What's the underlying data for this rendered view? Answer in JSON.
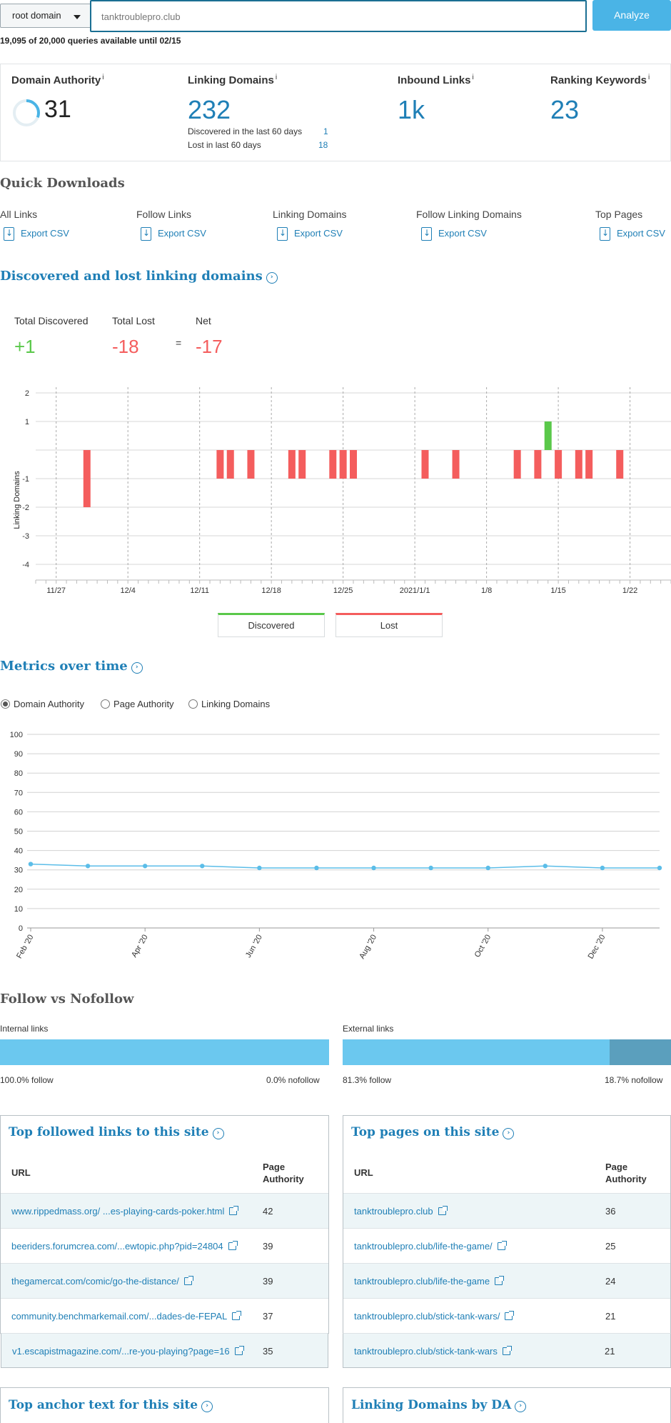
{
  "search": {
    "scope": "root domain",
    "query": "tanktroublepro.club",
    "analyze_label": "Analyze",
    "quota": "19,095 of 20,000 queries available until 02/15"
  },
  "metrics": {
    "domain_authority": {
      "label": "Domain Authority",
      "value": "31",
      "info": "i",
      "fraction": 0.31
    },
    "linking_domains": {
      "label": "Linking Domains",
      "value": "232",
      "info": "i",
      "discovered_label": "Discovered in the last 60 days",
      "discovered_value": "1",
      "lost_label": "Lost in last 60 days",
      "lost_value": "18"
    },
    "inbound_links": {
      "label": "Inbound Links",
      "value": "1k",
      "info": "i"
    },
    "ranking_keywords": {
      "label": "Ranking Keywords",
      "value": "23",
      "info": "i"
    }
  },
  "quick_downloads": {
    "title": "Quick Downloads",
    "export_label": "Export CSV",
    "items": [
      "All Links",
      "Follow Links",
      "Linking Domains",
      "Follow Linking Domains",
      "Top Pages"
    ]
  },
  "discovered_lost": {
    "title": "Discovered and lost linking domains",
    "total_discovered_label": "Total Discovered",
    "total_discovered": "+1",
    "total_lost_label": "Total Lost",
    "total_lost": "-18",
    "equals": "=",
    "net_label": "Net",
    "net": "-17",
    "legend_discovered": "Discovered",
    "legend_lost": "Lost"
  },
  "metrics_over_time": {
    "title": "Metrics over time",
    "options": [
      "Domain Authority",
      "Page Authority",
      "Linking Domains"
    ],
    "selected": "Domain Authority"
  },
  "follow": {
    "title": "Follow vs Nofollow",
    "internal_label": "Internal links",
    "internal_follow": "100.0% follow",
    "internal_nofollow": "0.0% nofollow",
    "internal_follow_fraction": 1.0,
    "external_label": "External links",
    "external_follow": "81.3% follow",
    "external_nofollow": "18.7% nofollow",
    "external_follow_fraction": 0.813
  },
  "top_links": {
    "title": "Top followed links to this site",
    "col_url": "URL",
    "col_pa1": "Page",
    "col_pa2": "Authority",
    "rows": [
      {
        "url": "www.rippedmass.org/ ...es-playing-cards-poker.html",
        "pa": "42"
      },
      {
        "url": "beeriders.forumcrea.com/...ewtopic.php?pid=24804",
        "pa": "39"
      },
      {
        "url": "thegamercat.com/comic/go-the-distance/",
        "pa": "39"
      },
      {
        "url": "community.benchmarkemail.com/...dades-de-FEPAL",
        "pa": "37"
      },
      {
        "url": "v1.escapistmagazine.com/...re-you-playing?page=16",
        "pa": "35"
      }
    ]
  },
  "top_pages": {
    "title": "Top pages on this site",
    "col_url": "URL",
    "col_pa1": "Page",
    "col_pa2": "Authority",
    "rows": [
      {
        "url": "tanktroublepro.club",
        "pa": "36"
      },
      {
        "url": "tanktroublepro.club/life-the-game/",
        "pa": "25"
      },
      {
        "url": "tanktroublepro.club/life-the-game",
        "pa": "24"
      },
      {
        "url": "tanktroublepro.club/stick-tank-wars/",
        "pa": "21"
      },
      {
        "url": "tanktroublepro.club/stick-tank-wars",
        "pa": "21"
      }
    ]
  },
  "anchor": {
    "title": "Top anchor text for this site"
  },
  "by_da": {
    "title": "Linking Domains by DA"
  },
  "colors": {
    "accent": "#1f7fb6",
    "positive": "#5ac84a",
    "negative": "#f45d5d",
    "line": "#5bbde8",
    "follow_bar": "#6bc8ef",
    "nofollow_bar": "#5b9fbd"
  },
  "chart_data": [
    {
      "type": "bar",
      "ylabel": "Linking Domains",
      "ylim": [
        -4,
        2
      ],
      "yticks": [
        "2",
        "1",
        "",
        "-1",
        "-2",
        "-3",
        "-4"
      ],
      "xticks": [
        "11/27",
        "12/4",
        "12/11",
        "12/18",
        "12/25",
        "2021/1/1",
        "1/8",
        "1/15",
        "1/22"
      ],
      "series": [
        {
          "name": "Discovered",
          "values": [
            {
              "x": "2021/1/14",
              "y": 1
            }
          ]
        },
        {
          "name": "Lost",
          "values": [
            {
              "x": "2020/11/30",
              "y": -2
            },
            {
              "x": "2020/12/13",
              "y": -1
            },
            {
              "x": "2020/12/14",
              "y": -1
            },
            {
              "x": "2020/12/16",
              "y": -1
            },
            {
              "x": "2020/12/20",
              "y": -1
            },
            {
              "x": "2020/12/21",
              "y": -1
            },
            {
              "x": "2020/12/24",
              "y": -1
            },
            {
              "x": "2020/12/25",
              "y": -1
            },
            {
              "x": "2020/12/26",
              "y": -1
            },
            {
              "x": "2021/1/2",
              "y": -1
            },
            {
              "x": "2021/1/5",
              "y": -1
            },
            {
              "x": "2021/1/11",
              "y": -1
            },
            {
              "x": "2021/1/13",
              "y": -1
            },
            {
              "x": "2021/1/15",
              "y": -1
            },
            {
              "x": "2021/1/17",
              "y": -1
            },
            {
              "x": "2021/1/18",
              "y": -1
            },
            {
              "x": "2021/1/21",
              "y": -1
            }
          ]
        }
      ]
    },
    {
      "type": "line",
      "ylim": [
        0,
        100
      ],
      "yticks": [
        "0",
        "10",
        "20",
        "30",
        "40",
        "50",
        "60",
        "70",
        "80",
        "90",
        "100"
      ],
      "xticks": [
        "Feb '20",
        "Apr '20",
        "Jun '20",
        "Aug '20",
        "Oct '20",
        "Dec '20"
      ],
      "series": [
        {
          "name": "Domain Authority",
          "values": [
            {
              "x": "2020-02",
              "y": 33
            },
            {
              "x": "2020-03",
              "y": 32
            },
            {
              "x": "2020-04",
              "y": 32
            },
            {
              "x": "2020-05",
              "y": 32
            },
            {
              "x": "2020-06",
              "y": 31
            },
            {
              "x": "2020-07",
              "y": 31
            },
            {
              "x": "2020-08",
              "y": 31
            },
            {
              "x": "2020-09",
              "y": 31
            },
            {
              "x": "2020-10",
              "y": 31
            },
            {
              "x": "2020-11",
              "y": 32
            },
            {
              "x": "2020-12",
              "y": 31
            },
            {
              "x": "2021-01",
              "y": 31
            }
          ]
        }
      ]
    }
  ]
}
